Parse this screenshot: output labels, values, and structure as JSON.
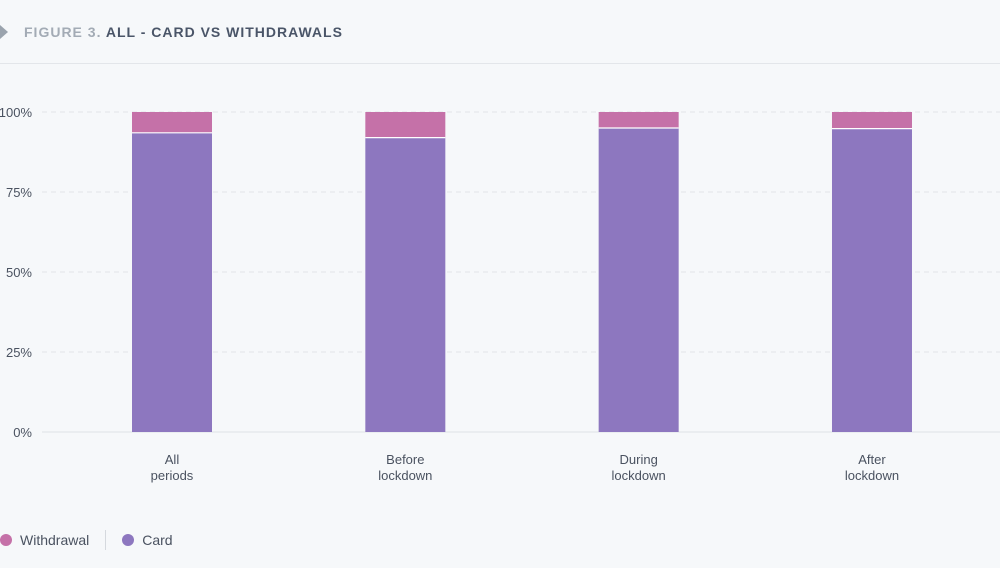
{
  "header": {
    "figure_label": "FIGURE 3.",
    "title": "ALL - CARD VS WITHDRAWALS",
    "icon": "chevron-right-icon"
  },
  "chart_data": {
    "type": "bar",
    "stacked": true,
    "categories": [
      [
        "All",
        "periods"
      ],
      [
        "Before",
        "lockdown"
      ],
      [
        "During",
        "lockdown"
      ],
      [
        "After",
        "lockdown"
      ]
    ],
    "series": [
      {
        "name": "Card",
        "color": "#8d77bf",
        "values": [
          93.5,
          92,
          95,
          94.8
        ]
      },
      {
        "name": "Withdrawal",
        "color": "#c571a8",
        "values": [
          6.5,
          8,
          5,
          5.2
        ]
      }
    ],
    "ylim": [
      0,
      100
    ],
    "yticks": [
      "0%",
      "25%",
      "50%",
      "75%",
      "100%"
    ],
    "grid": true,
    "legend_position": "bottom-left"
  },
  "legend": [
    {
      "label": "Withdrawal",
      "color": "#c571a8"
    },
    {
      "label": "Card",
      "color": "#8d77bf"
    }
  ]
}
